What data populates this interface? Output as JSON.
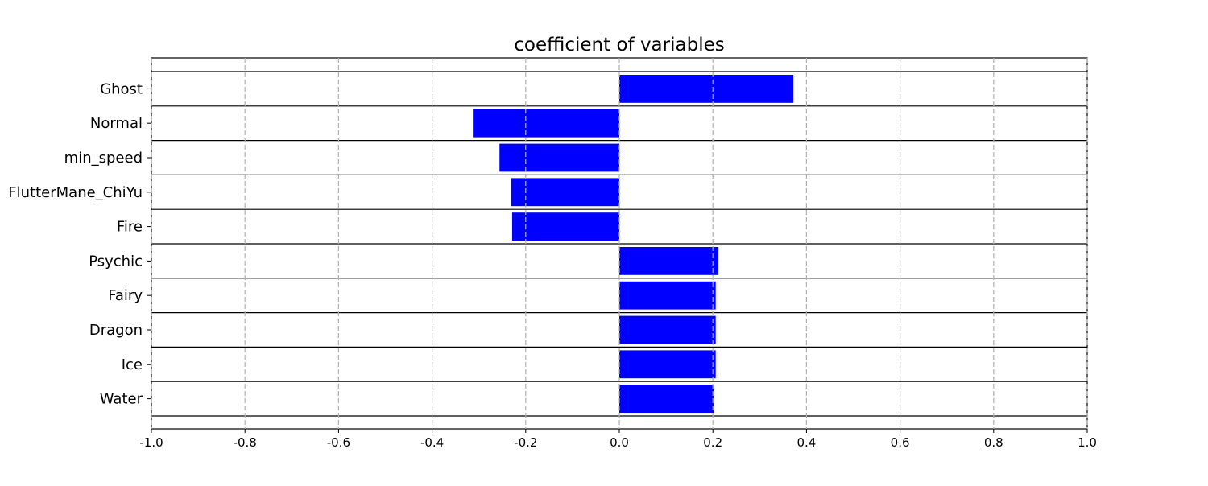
{
  "chart_data": {
    "type": "bar",
    "orientation": "horizontal",
    "title": "coefficient of variables",
    "xlabel": "",
    "ylabel": "",
    "xlim": [
      -1.0,
      1.0
    ],
    "xticks": [
      "-1.0",
      "-0.8",
      "-0.6",
      "-0.4",
      "-0.2",
      "0.0",
      "0.2",
      "0.4",
      "0.6",
      "0.8",
      "1.0"
    ],
    "grid": "vertical dashed",
    "bar_color": "#0000ff",
    "categories": [
      "Ghost",
      "Normal",
      "min_speed",
      "FlutterMane_ChiYu",
      "Fire",
      "Psychic",
      "Fairy",
      "Dragon",
      "Ice",
      "Water"
    ],
    "values": [
      0.372,
      -0.313,
      -0.256,
      -0.231,
      -0.229,
      0.212,
      0.206,
      0.206,
      0.206,
      0.202
    ]
  }
}
